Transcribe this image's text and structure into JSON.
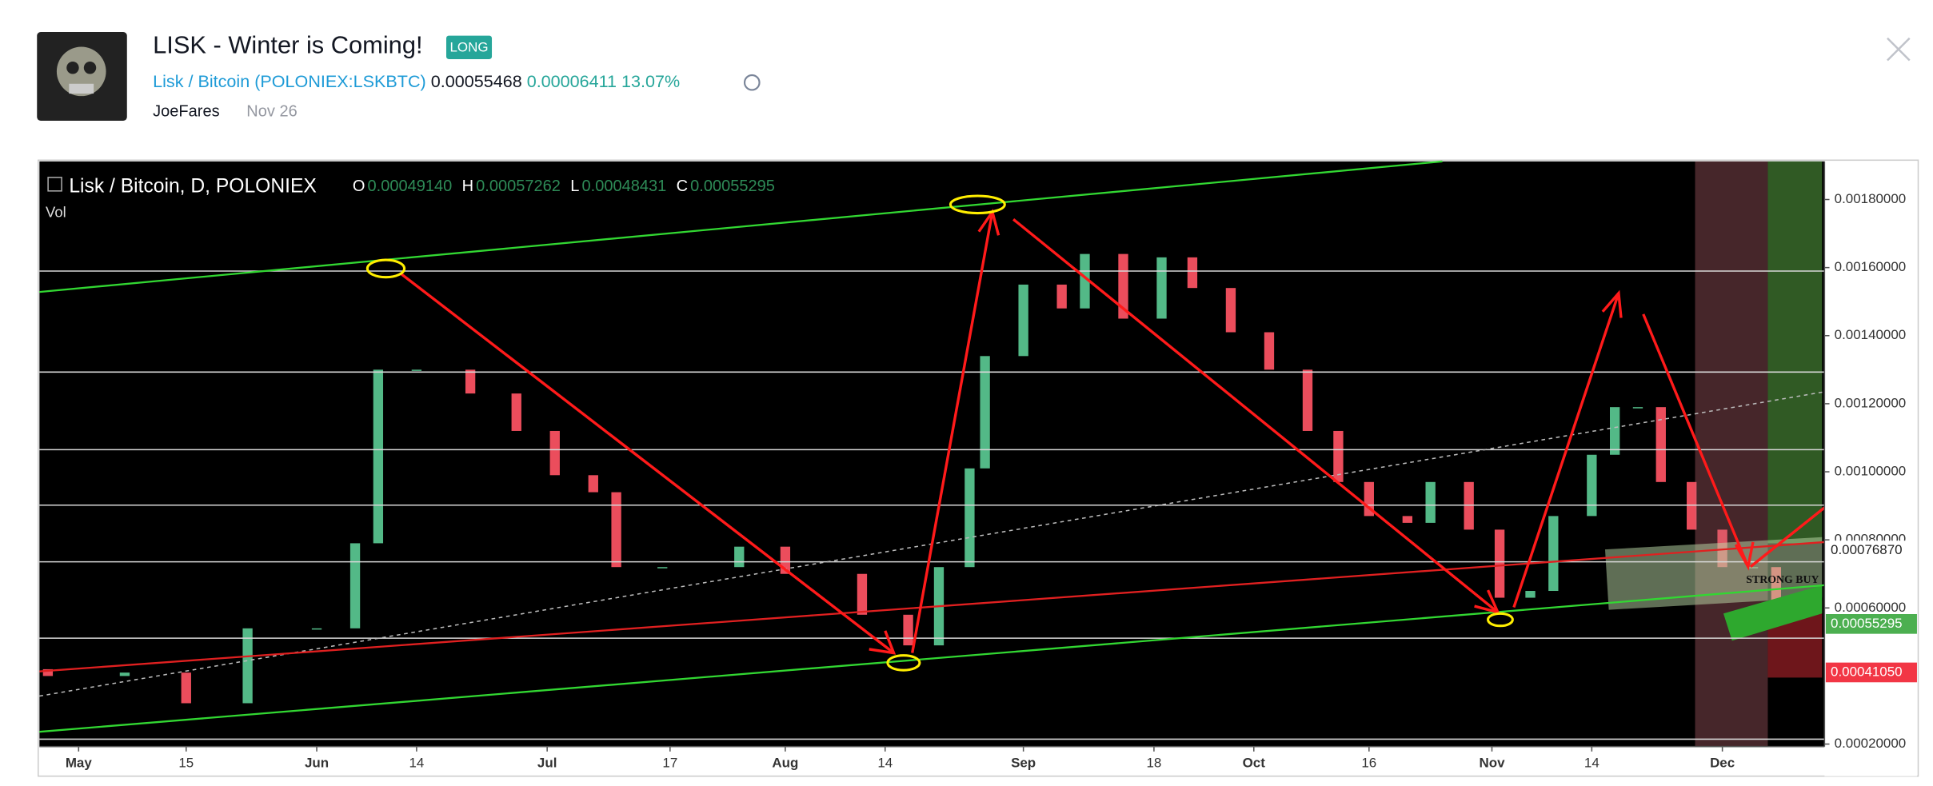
{
  "header": {
    "title": "LISK - Winter is Coming!",
    "badge": "LONG",
    "symbol_name": "Lisk / Bitcoin",
    "symbol": "(POLONIEX:LSKBTC)",
    "price": "0.00055468",
    "change": "0.00006411",
    "change_percent": "13.07%",
    "author": "JoeFares",
    "date": "Nov 26"
  },
  "chart_data": {
    "type": "candlestick",
    "title": "Lisk / Bitcoin, D, POLONIEX",
    "ohlc": [
      {
        "label": "O",
        "value": "0.00049140"
      },
      {
        "label": "H",
        "value": "0.00057262"
      },
      {
        "label": "L",
        "value": "0.00048431"
      },
      {
        "label": "C",
        "value": "0.00055295"
      }
    ],
    "volume_label": "Vol",
    "x": [
      -4,
      6,
      14,
      22,
      31,
      36,
      39,
      44,
      51,
      57,
      62,
      67,
      70,
      76,
      86,
      92,
      102,
      108,
      112,
      116,
      118,
      123,
      128,
      131,
      136,
      141,
      145,
      150,
      155,
      160,
      164,
      168,
      173,
      176,
      181,
      185,
      189,
      192,
      197,
      200,
      203,
      206,
      210,
      214,
      218,
      221
    ],
    "open": [
      0.00042,
      0.0004,
      0.00041,
      0.00032,
      0.00054,
      0.00054,
      0.00079,
      0.0013,
      0.0013,
      0.00123,
      0.00112,
      0.00099,
      0.00094,
      0.00072,
      0.00072,
      0.00078,
      0.0007,
      0.00058,
      0.00049,
      0.00072,
      0.00101,
      0.00134,
      0.00155,
      0.00148,
      0.00164,
      0.00145,
      0.00163,
      0.00154,
      0.00141,
      0.0013,
      0.00112,
      0.00097,
      0.00087,
      0.00085,
      0.00097,
      0.00083,
      0.00063,
      0.00065,
      0.00087,
      0.00105,
      0.00119,
      0.00119,
      0.00097,
      0.00083,
      0.00072,
      0.00072
    ],
    "close": [
      0.0004,
      0.00041,
      0.00032,
      0.00054,
      0.00054,
      0.00079,
      0.0013,
      0.0013,
      0.00123,
      0.00112,
      0.00099,
      0.00094,
      0.00072,
      0.00072,
      0.00078,
      0.0007,
      0.00058,
      0.00049,
      0.00072,
      0.00101,
      0.00134,
      0.00155,
      0.00148,
      0.00164,
      0.00145,
      0.00163,
      0.00154,
      0.00141,
      0.0013,
      0.00112,
      0.00097,
      0.00087,
      0.00085,
      0.00097,
      0.00083,
      0.00063,
      0.00065,
      0.00087,
      0.00105,
      0.00119,
      0.00119,
      0.00097,
      0.00083,
      0.00072,
      0.00072,
      0.00055
    ],
    "up_color": "#53b987",
    "down_color": "#eb4d5c",
    "xlim": [
      -5.1,
      227.3
    ],
    "xticks": [
      {
        "value": 0,
        "label": "May"
      },
      {
        "value": 14,
        "label": "15"
      },
      {
        "value": 31,
        "label": "Jun"
      },
      {
        "value": 44,
        "label": "14"
      },
      {
        "value": 61,
        "label": "Jul"
      },
      {
        "value": 77,
        "label": "17"
      },
      {
        "value": 92,
        "label": "Aug"
      },
      {
        "value": 105,
        "label": "14"
      },
      {
        "value": 123,
        "label": "Sep"
      },
      {
        "value": 140,
        "label": "18"
      },
      {
        "value": 153,
        "label": "Oct"
      },
      {
        "value": 168,
        "label": "16"
      },
      {
        "value": 184,
        "label": "Nov"
      },
      {
        "value": 197,
        "label": "14"
      },
      {
        "value": 214,
        "label": "Dec"
      }
    ],
    "ylim": [
      0.000113,
      0.001912
    ],
    "yticks": [
      {
        "value": 0.0018,
        "label": "0.00180000"
      },
      {
        "value": 0.0016,
        "label": "0.00160000"
      },
      {
        "value": 0.0014,
        "label": "0.00140000"
      },
      {
        "value": 0.0012,
        "label": "0.00120000"
      },
      {
        "value": 0.001,
        "label": "0.00100000"
      },
      {
        "value": 0.0008,
        "label": "0.00080000"
      },
      {
        "value": 0.0006,
        "label": "0.00060000"
      },
      {
        "value": 0.0002,
        "label": "0.00020000"
      }
    ],
    "price_labels": [
      {
        "value": 0.0007687,
        "label": "0.00076870",
        "color": "#ffffff"
      },
      {
        "value": 0.00055295,
        "label": "0.00055295",
        "color": "#4caf50"
      },
      {
        "value": 0.0004105,
        "label": "0.00041050",
        "color": "#f23645"
      }
    ],
    "annotations": [
      "STRONG BUY"
    ]
  }
}
